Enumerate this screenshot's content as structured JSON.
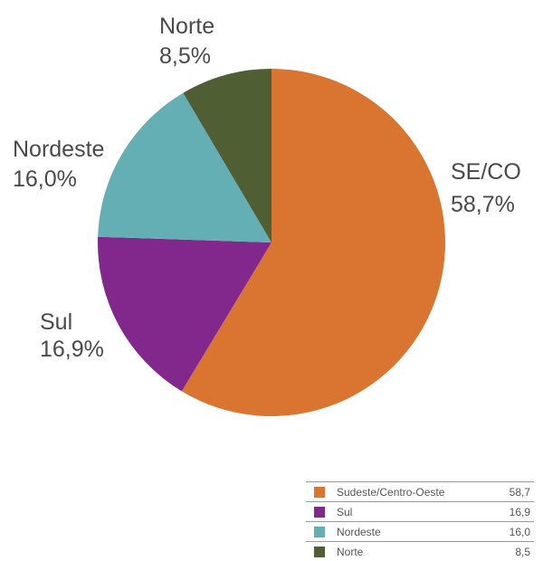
{
  "chart_data": {
    "type": "pie",
    "title": "",
    "slices": [
      {
        "key": "seco",
        "label": "SE/CO",
        "label_value": "58,7%",
        "legend_name": "Sudeste/Centro-Oeste",
        "legend_value": "58,7",
        "value": 58.7,
        "color": "#D97530"
      },
      {
        "key": "sul",
        "label": "Sul",
        "label_value": "16,9%",
        "legend_name": "Sul",
        "legend_value": "16,9",
        "value": 16.9,
        "color": "#82288C"
      },
      {
        "key": "nordeste",
        "label": "Nordeste",
        "label_value": "16,0%",
        "legend_name": "Nordeste",
        "legend_value": "16,0",
        "value": 16.0,
        "color": "#64AFB3"
      },
      {
        "key": "norte",
        "label": "Norte",
        "label_value": "8,5%",
        "legend_name": "Norte",
        "legend_value": "8,5",
        "value": 8.5,
        "color": "#4F5E33"
      }
    ],
    "start_angle": "12 o'clock",
    "direction": "clockwise",
    "legend_position": "bottom-right"
  }
}
